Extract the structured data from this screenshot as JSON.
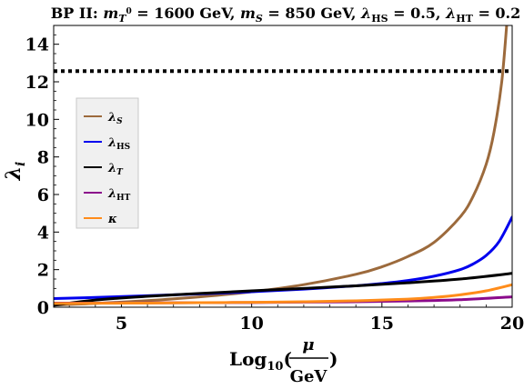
{
  "chart_data": {
    "type": "line",
    "title_parts": {
      "prefix": "BP II: ",
      "m": "m",
      "T": "T",
      "zero": "0",
      "mT_value": " = 1600 GeV, ",
      "S": "S",
      "mS_value": " = 850 GeV, ",
      "lambda": "λ",
      "HS": "HS",
      "lhs_value": " = 0.5, ",
      "HT": "HT",
      "lht_value": " = 0.2"
    },
    "ylabel": {
      "lambda": "λ",
      "sub": "i"
    },
    "xlabel": {
      "log": "Log",
      "sub": "10",
      "open": "(",
      "mu": "μ",
      "gev": "GeV",
      "close": ")"
    },
    "xlim": [
      2.4,
      20
    ],
    "ylim": [
      0,
      15
    ],
    "x_ticks": [
      "5",
      "10",
      "15",
      "20"
    ],
    "y_ticks": [
      "0",
      "2",
      "4",
      "6",
      "8",
      "10",
      "12",
      "14"
    ],
    "grid": false,
    "legend_placement": "left",
    "reference_line": {
      "y": 12.566,
      "style": "dotted",
      "color": "#000000"
    },
    "series": [
      {
        "name": {
          "sym": "λ",
          "sub": "S"
        },
        "color": "#9c6a3c",
        "x": [
          2.4,
          4,
          6,
          8,
          10,
          12,
          14,
          15,
          16,
          17,
          18,
          18.5,
          19,
          19.3,
          19.6,
          19.8
        ],
        "y": [
          0.12,
          0.2,
          0.35,
          0.55,
          0.82,
          1.2,
          1.75,
          2.15,
          2.7,
          3.45,
          4.8,
          5.9,
          7.6,
          9.3,
          12.0,
          15.2
        ]
      },
      {
        "name": {
          "sym": "λ",
          "sub": "HS"
        },
        "color": "#0000ee",
        "x": [
          2.4,
          4,
          6,
          8,
          10,
          12,
          14,
          15,
          16,
          17,
          18,
          18.5,
          19,
          19.5,
          20
        ],
        "y": [
          0.46,
          0.52,
          0.61,
          0.71,
          0.82,
          0.96,
          1.14,
          1.26,
          1.42,
          1.65,
          2.0,
          2.3,
          2.75,
          3.5,
          4.8
        ]
      },
      {
        "name": {
          "sym": "λ",
          "sub": "T"
        },
        "color": "#000000",
        "x": [
          2.4,
          4,
          6,
          8,
          10,
          12,
          14,
          16,
          18,
          20
        ],
        "y": [
          0.1,
          0.38,
          0.58,
          0.73,
          0.87,
          1.0,
          1.14,
          1.3,
          1.5,
          1.8
        ]
      },
      {
        "name": {
          "sym": "λ",
          "sub": "HT"
        },
        "color": "#8b0a8b",
        "x": [
          2.4,
          4,
          6,
          8,
          10,
          12,
          14,
          16,
          18,
          20
        ],
        "y": [
          0.22,
          0.22,
          0.23,
          0.24,
          0.25,
          0.27,
          0.29,
          0.33,
          0.4,
          0.55
        ]
      },
      {
        "name": {
          "sym": "κ",
          "sub": ""
        },
        "color": "#ff8c1a",
        "x": [
          2.4,
          4,
          6,
          8,
          10,
          12,
          14,
          16,
          17,
          18,
          19,
          20
        ],
        "y": [
          0.2,
          0.21,
          0.22,
          0.24,
          0.26,
          0.29,
          0.34,
          0.43,
          0.52,
          0.66,
          0.87,
          1.2
        ]
      }
    ]
  }
}
